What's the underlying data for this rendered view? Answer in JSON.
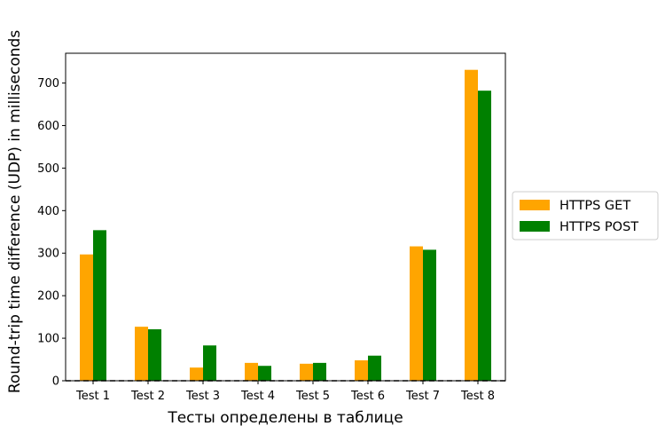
{
  "chart_data": {
    "type": "bar",
    "title": "",
    "xlabel": "Тесты определены в таблице",
    "ylabel": "Round-trip time difference (UDP) in milliseconds",
    "categories": [
      "Test 1",
      "Test 2",
      "Test 3",
      "Test 4",
      "Test 5",
      "Test 6",
      "Test 7",
      "Test 8"
    ],
    "series": [
      {
        "name": "HTTPS GET",
        "color": "#ffa500",
        "values": [
          297,
          127,
          31,
          42,
          40,
          48,
          316,
          731
        ]
      },
      {
        "name": "HTTPS POST",
        "color": "#008000",
        "values": [
          354,
          121,
          83,
          35,
          42,
          59,
          308,
          682
        ]
      }
    ],
    "yticks": [
      0,
      100,
      200,
      300,
      400,
      500,
      600,
      700
    ],
    "ylim": [
      0,
      770
    ],
    "legend_position": "outside-right",
    "grid": false,
    "reference_line": {
      "y": 0,
      "style": "dashed",
      "color": "#000000"
    }
  }
}
